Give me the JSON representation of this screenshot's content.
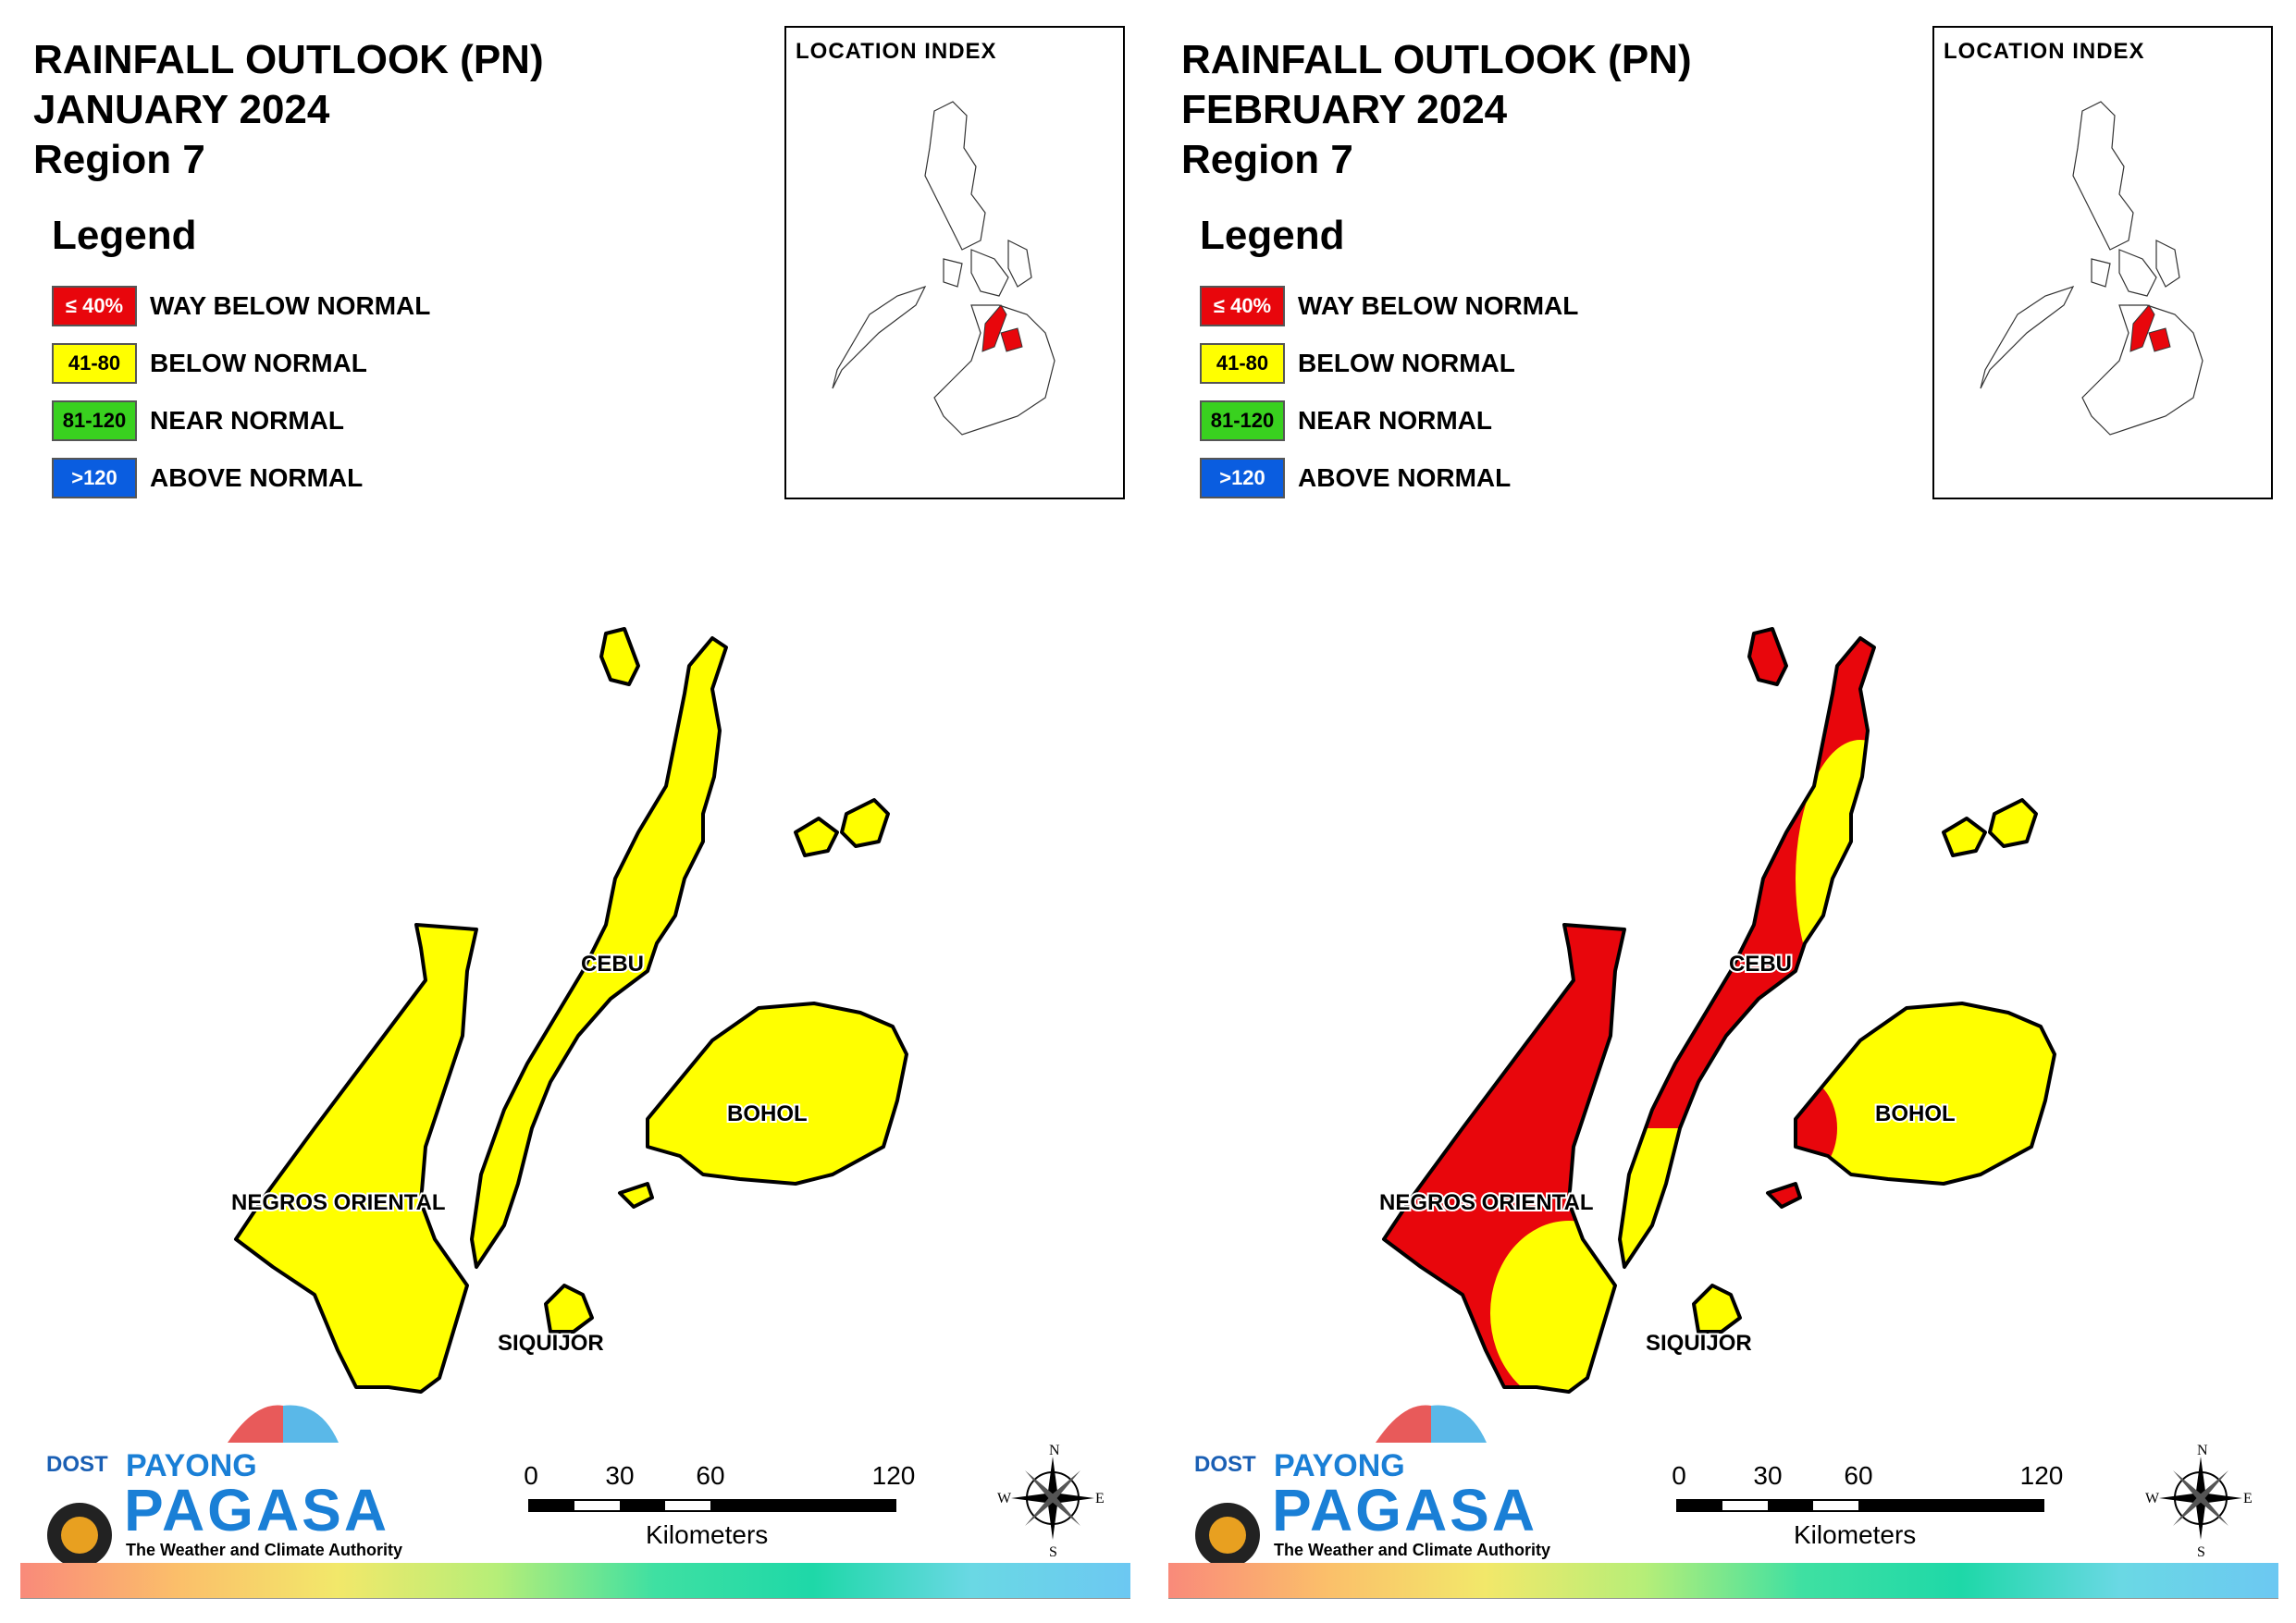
{
  "panels": [
    {
      "title_line1": "RAINFALL OUTLOOK (PN)",
      "title_line2": "JANUARY 2024",
      "title_line3": "Region 7",
      "legend_title": "Legend",
      "legend": [
        {
          "code": "≤ 40%",
          "label": "WAY BELOW NORMAL",
          "color": "#e8060c"
        },
        {
          "code": "41-80",
          "label": "BELOW NORMAL",
          "color": "#ffff00"
        },
        {
          "code": "81-120",
          "label": "NEAR NORMAL",
          "color": "#39d11f"
        },
        {
          "code": ">120",
          "label": "ABOVE NORMAL",
          "color": "#0a5de0"
        }
      ],
      "location_index_title": "LOCATION INDEX",
      "province_labels": {
        "cebu": "CEBU",
        "bohol": "BOHOL",
        "negros": "NEGROS ORIENTAL",
        "siquijor": "SIQUIJOR"
      },
      "map_colors": {
        "negros": "below normal",
        "cebu": "below normal",
        "bohol": "below normal",
        "siquijor": "below normal"
      },
      "scale": {
        "ticks": [
          "0",
          "30",
          "60",
          "120"
        ],
        "unit": "Kilometers"
      },
      "compass": {
        "n": "N",
        "s": "S",
        "e": "E",
        "w": "W"
      },
      "logo": {
        "dost": "DOST",
        "payong": "PAYONG",
        "pagasa": "PAGASA",
        "tagline": "The Weather and Climate Authority"
      }
    },
    {
      "title_line1": "RAINFALL OUTLOOK (PN)",
      "title_line2": "FEBRUARY 2024",
      "title_line3": "Region 7",
      "legend_title": "Legend",
      "legend": [
        {
          "code": "≤ 40%",
          "label": "WAY BELOW NORMAL",
          "color": "#e8060c"
        },
        {
          "code": "41-80",
          "label": "BELOW NORMAL",
          "color": "#ffff00"
        },
        {
          "code": "81-120",
          "label": "NEAR NORMAL",
          "color": "#39d11f"
        },
        {
          "code": ">120",
          "label": "ABOVE NORMAL",
          "color": "#0a5de0"
        }
      ],
      "location_index_title": "LOCATION INDEX",
      "province_labels": {
        "cebu": "CEBU",
        "bohol": "BOHOL",
        "negros": "NEGROS ORIENTAL",
        "siquijor": "SIQUIJOR"
      },
      "map_colors": {
        "negros": "mostly way below normal, southeast below normal",
        "cebu": "mostly way below normal, central-east and south below normal",
        "bohol": "below normal, western tip way below normal",
        "siquijor": "below normal"
      },
      "scale": {
        "ticks": [
          "0",
          "30",
          "60",
          "120"
        ],
        "unit": "Kilometers"
      },
      "compass": {
        "n": "N",
        "s": "S",
        "e": "E",
        "w": "W"
      },
      "logo": {
        "dost": "DOST",
        "payong": "PAYONG",
        "pagasa": "PAGASA",
        "tagline": "The Weather and Climate Authority"
      }
    }
  ]
}
